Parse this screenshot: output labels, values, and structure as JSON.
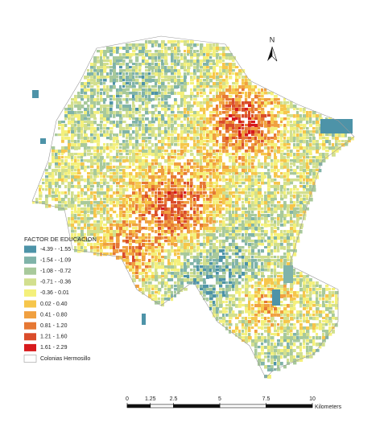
{
  "north_label": "N",
  "legend": {
    "title": "FACTOR DE EDUCACION",
    "items": [
      {
        "label": "-4.39 - -1.55",
        "color": "#4d93a8"
      },
      {
        "label": "-1.54 - -1.09",
        "color": "#80b3a9"
      },
      {
        "label": "-1.08 - -0.72",
        "color": "#a8c99b"
      },
      {
        "label": "-0.71 - -0.36",
        "color": "#d2df8e"
      },
      {
        "label": "-0.36 - 0.01",
        "color": "#f4f07b"
      },
      {
        "label": "0.02 - 0.40",
        "color": "#f6c64b"
      },
      {
        "label": "0.41 - 0.80",
        "color": "#f0a040"
      },
      {
        "label": "0.81 - 1.20",
        "color": "#e67834"
      },
      {
        "label": "1.21 - 1.60",
        "color": "#da4c2a"
      },
      {
        "label": "1.61 - 2.29",
        "color": "#d7191c"
      },
      {
        "label": "Colonias Hermosillo",
        "color": "#ffffff"
      }
    ]
  },
  "scale": {
    "ticks": [
      0,
      1.25,
      2.5,
      5,
      7.5,
      10
    ],
    "unit": "Kilometers"
  }
}
